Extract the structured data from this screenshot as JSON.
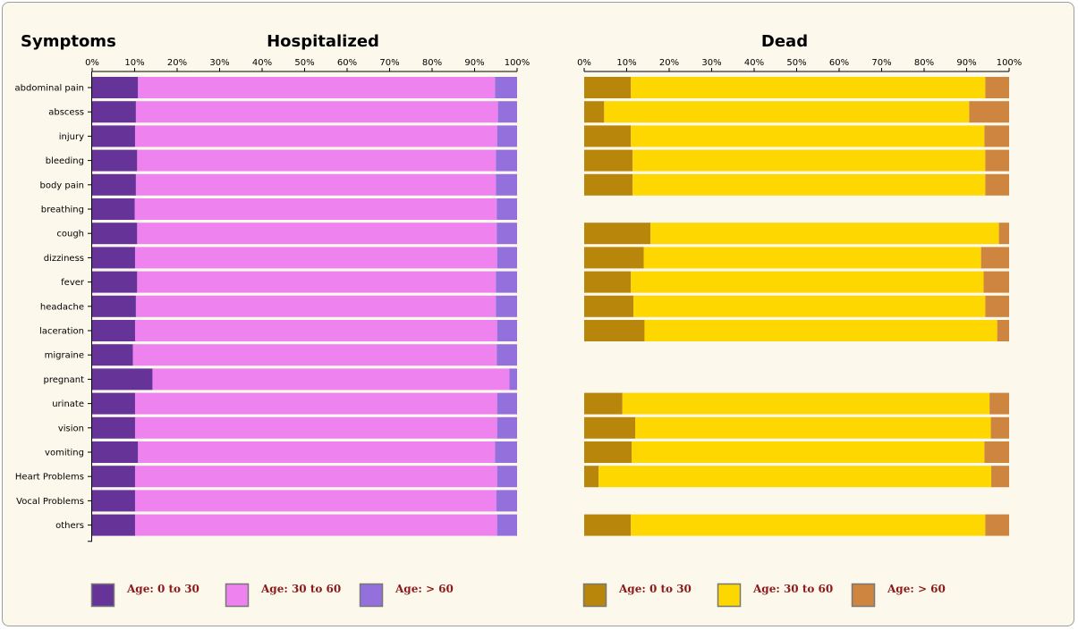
{
  "chart_data": {
    "type": "bar",
    "orientation": "horizontal",
    "stacked": "percent",
    "symptoms_label": "Symptoms",
    "categories": [
      "abdominal pain",
      "abscess",
      "injury",
      "bleeding",
      "body pain",
      "breathing",
      "cough",
      "dizziness",
      "fever",
      "headache",
      "laceration",
      "migraine",
      "pregnant",
      "urinate",
      "vision",
      "vomiting",
      "Heart Problems",
      "Vocal Problems",
      "others"
    ],
    "x_ticks": [
      "0%",
      "10%",
      "20%",
      "30%",
      "40%",
      "50%",
      "60%",
      "70%",
      "80%",
      "90%",
      "100%"
    ],
    "xlim": [
      0,
      100
    ],
    "panels": [
      {
        "title": "Hospitalized",
        "series": [
          {
            "name": "Age: 0 to 30",
            "color": "#663399",
            "values": [
              10.8,
              10.3,
              10.1,
              10.6,
              10.3,
              10.0,
              10.6,
              10.1,
              10.6,
              10.3,
              10.1,
              9.6,
              14.2,
              10.1,
              10.1,
              10.8,
              10.1,
              10.1,
              10.1
            ]
          },
          {
            "name": "Age: 30 to 60",
            "color": "#ee82ee",
            "values": [
              84.0,
              85.2,
              85.2,
              84.4,
              84.7,
              85.2,
              84.6,
              85.2,
              84.4,
              84.7,
              85.2,
              85.6,
              84.0,
              85.2,
              85.2,
              84.0,
              85.2,
              85.0,
              85.2
            ]
          },
          {
            "name": "Age: > 60",
            "color": "#9370db",
            "values": [
              5.2,
              4.5,
              4.7,
              5.0,
              5.0,
              4.8,
              4.8,
              4.7,
              5.0,
              5.0,
              4.7,
              4.8,
              1.8,
              4.7,
              4.7,
              5.2,
              4.7,
              4.9,
              4.7
            ]
          }
        ]
      },
      {
        "title": "Dead",
        "series": [
          {
            "name": "Age: 0 to 30",
            "color": "#b8860b",
            "values": [
              11.0,
              4.7,
              11.0,
              11.4,
              11.4,
              null,
              15.6,
              14.0,
              11.0,
              11.6,
              14.2,
              null,
              null,
              9.0,
              12.0,
              11.2,
              3.4,
              null,
              11.0
            ]
          },
          {
            "name": "Age: 30 to 60",
            "color": "#ffd700",
            "values": [
              83.4,
              85.9,
              83.2,
              83.0,
              83.0,
              null,
              82.0,
              79.4,
              83.0,
              82.8,
              83.0,
              null,
              null,
              86.4,
              83.7,
              83.0,
              92.4,
              null,
              83.4
            ]
          },
          {
            "name": "Age: > 60",
            "color": "#cd853f",
            "values": [
              5.6,
              9.4,
              5.8,
              5.6,
              5.6,
              null,
              2.4,
              6.6,
              6.0,
              5.6,
              2.8,
              null,
              null,
              4.6,
              4.3,
              5.8,
              4.2,
              null,
              5.6
            ]
          }
        ]
      }
    ],
    "legend_placement": "bottom"
  }
}
